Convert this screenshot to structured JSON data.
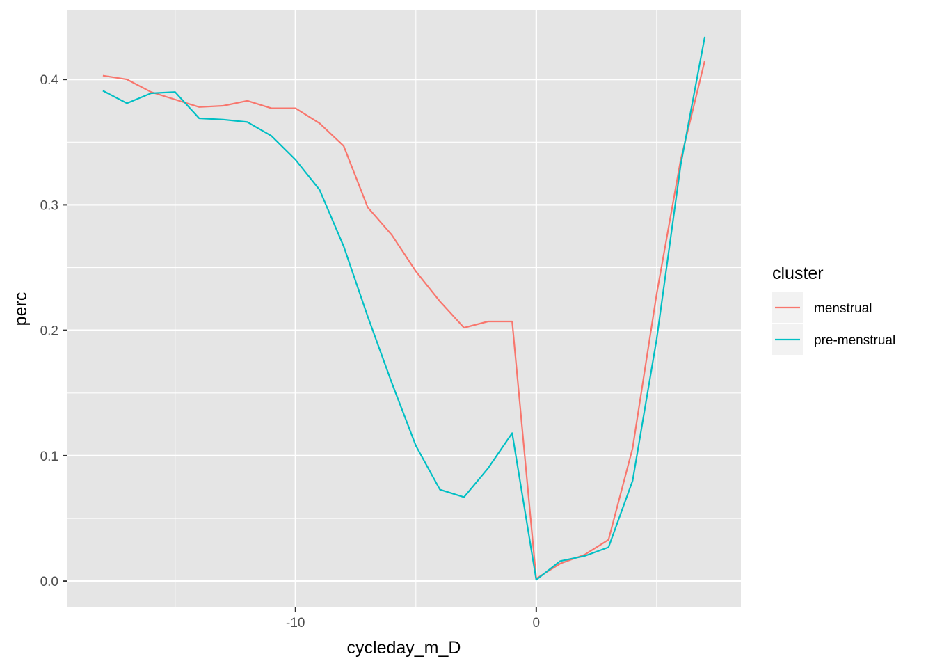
{
  "chart_data": {
    "type": "line",
    "title": "",
    "xlabel": "cycleday_m_D",
    "ylabel": "perc",
    "xlim": [
      -19.5,
      8.5
    ],
    "ylim": [
      -0.021,
      0.455
    ],
    "x_ticks": [
      -10,
      0
    ],
    "x_ticks_minor": [
      -15,
      -5,
      5
    ],
    "y_ticks": [
      0.0,
      0.1,
      0.2,
      0.3,
      0.4
    ],
    "y_tick_labels": [
      "0.0",
      "0.1",
      "0.2",
      "0.3",
      "0.4"
    ],
    "y_ticks_minor": [
      0.05,
      0.15,
      0.25,
      0.35
    ],
    "grid": true,
    "panel_background": "#e5e5e5",
    "legend": {
      "title": "cluster",
      "placement": "right"
    },
    "series": [
      {
        "name": "menstrual",
        "color": "#f8766d",
        "x": [
          -18,
          -17,
          -16,
          -15,
          -14,
          -13,
          -12,
          -11,
          -10,
          -9,
          -8,
          -7,
          -6,
          -5,
          -4,
          -3,
          -2,
          -1,
          0,
          1,
          2,
          3,
          4,
          5,
          6,
          7
        ],
        "values": [
          0.403,
          0.4,
          0.39,
          0.384,
          0.378,
          0.379,
          0.383,
          0.377,
          0.377,
          0.365,
          0.347,
          0.298,
          0.276,
          0.247,
          0.223,
          0.202,
          0.207,
          0.207,
          0.002,
          0.014,
          0.021,
          0.033,
          0.106,
          0.229,
          0.336,
          0.415
        ]
      },
      {
        "name": "pre-menstrual",
        "color": "#00bfc4",
        "x": [
          -18,
          -17,
          -16,
          -15,
          -14,
          -13,
          -12,
          -11,
          -10,
          -9,
          -8,
          -7,
          -6,
          -5,
          -4,
          -3,
          -2,
          -1,
          0,
          1,
          2,
          3,
          4,
          5,
          6,
          7
        ],
        "values": [
          0.391,
          0.381,
          0.389,
          0.39,
          0.369,
          0.368,
          0.366,
          0.355,
          0.336,
          0.312,
          0.267,
          0.211,
          0.158,
          0.108,
          0.073,
          0.067,
          0.09,
          0.118,
          0.001,
          0.016,
          0.02,
          0.027,
          0.08,
          0.193,
          0.332,
          0.434
        ]
      }
    ]
  }
}
